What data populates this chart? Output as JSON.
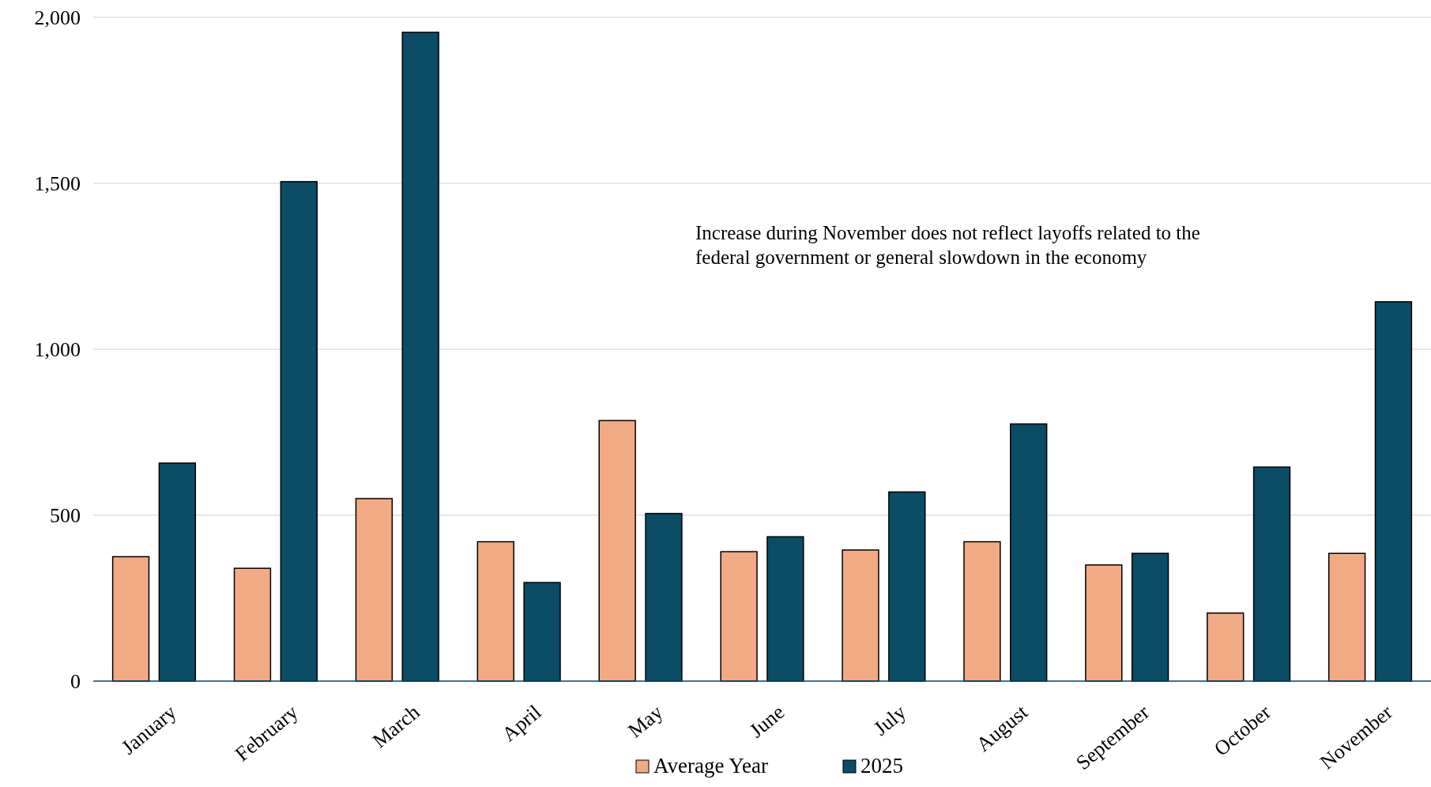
{
  "chart_data": {
    "type": "bar",
    "categories": [
      "January",
      "February",
      "March",
      "April",
      "May",
      "June",
      "July",
      "August",
      "September",
      "October",
      "November"
    ],
    "series": [
      {
        "name": "Average Year",
        "color": "#f2aa84",
        "values": [
          375,
          340,
          550,
          420,
          785,
          390,
          395,
          420,
          350,
          205,
          385
        ]
      },
      {
        "name": "2025",
        "color": "#0b4c66",
        "values": [
          657,
          1505,
          1955,
          297,
          505,
          435,
          570,
          775,
          385,
          645,
          1143
        ]
      }
    ],
    "ylim": [
      0,
      2000
    ],
    "yticks": [
      0,
      {
        "value": 500,
        "label": "500"
      },
      {
        "value": 1000,
        "label": "1,000"
      },
      {
        "value": 1500,
        "label": "1,500"
      },
      {
        "value": 2000,
        "label": "2,000"
      }
    ],
    "grid": "y",
    "legend": "bottom",
    "annotations": [
      "Increase during November does not reflect layoffs related to the federal government or general slowdown in the economy"
    ]
  }
}
